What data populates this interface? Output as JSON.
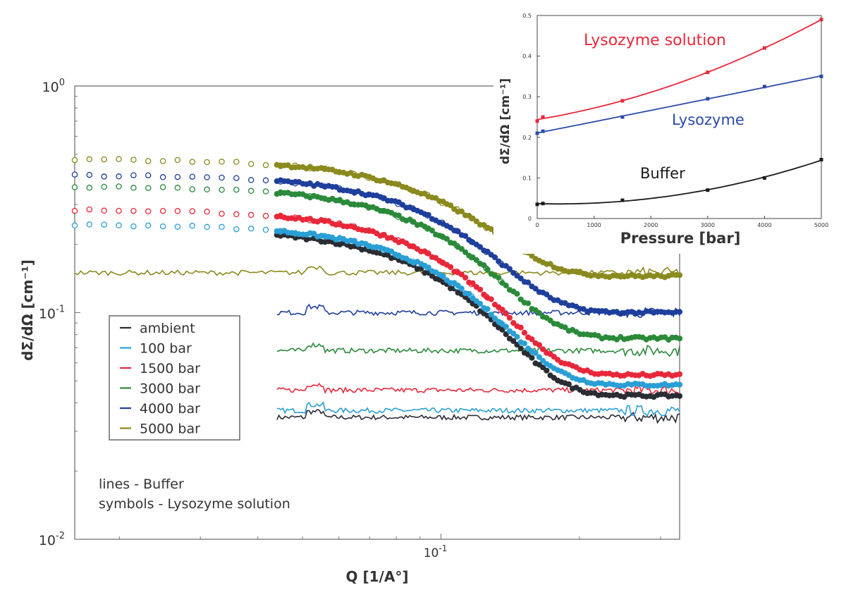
{
  "chart_data": [
    {
      "id": "main",
      "type": "scatter",
      "xlabel": "Q [1/A°]",
      "ylabel": "dΣ/dΩ [cm⁻¹]",
      "xscale": "log",
      "yscale": "log",
      "xlim": [
        0.016,
        0.33
      ],
      "ylim": [
        0.01,
        1.0
      ],
      "xticks": [
        {
          "value": 0.1,
          "label": "10",
          "sup": "-1"
        }
      ],
      "yticks": [
        {
          "value": 1.0,
          "label": "10",
          "sup": "0"
        },
        {
          "value": 0.1,
          "label": "10",
          "sup": "-1"
        },
        {
          "value": 0.01,
          "label": "10",
          "sup": "-2"
        }
      ],
      "legend_position": "lower-left",
      "note_lines": [
        "lines - Buffer",
        "symbols - Lysozyme solution"
      ],
      "series": [
        {
          "name": "ambient",
          "color": "#2a2d33",
          "plateau": 0.235,
          "high_q": 0.043,
          "buffer_level": 0.0345,
          "open_from": null
        },
        {
          "name": "100 bar",
          "color": "#2a9fd6",
          "plateau": 0.245,
          "high_q": 0.048,
          "buffer_level": 0.037,
          "open_from": 0.016
        },
        {
          "name": "1500 bar",
          "color": "#e8283a",
          "plateau": 0.285,
          "high_q": 0.053,
          "buffer_level": 0.0455,
          "open_from": 0.016
        },
        {
          "name": "3000 bar",
          "color": "#2a8a3a",
          "plateau": 0.36,
          "high_q": 0.077,
          "buffer_level": 0.068,
          "open_from": 0.016
        },
        {
          "name": "4000 bar",
          "color": "#1e3f9c",
          "plateau": 0.405,
          "high_q": 0.1,
          "buffer_level": 0.1,
          "open_from": 0.016
        },
        {
          "name": "5000 bar",
          "color": "#8a8a1e",
          "plateau": 0.475,
          "high_q": 0.145,
          "buffer_level": 0.15,
          "open_from": 0.016
        }
      ]
    },
    {
      "id": "inset",
      "type": "line",
      "xlabel": "Pressure [bar]",
      "ylabel": "dΣ/dΩ [cm⁻¹]",
      "xlim": [
        0,
        5000
      ],
      "ylim": [
        0,
        0.5
      ],
      "xticks": [
        0,
        1000,
        2000,
        3000,
        4000,
        5000
      ],
      "yticks": [
        0,
        0.1,
        0.2,
        0.3,
        0.4,
        0.5
      ],
      "series": [
        {
          "name": "Lysozyme solution",
          "color": "#e8283a",
          "x": [
            0,
            100,
            1500,
            3000,
            4000,
            5000
          ],
          "y": [
            0.24,
            0.25,
            0.29,
            0.36,
            0.42,
            0.49
          ]
        },
        {
          "name": "Lysozyme",
          "color": "#2b4aa8",
          "x": [
            0,
            100,
            1500,
            3000,
            4000,
            5000
          ],
          "y": [
            0.21,
            0.215,
            0.25,
            0.295,
            0.325,
            0.35
          ]
        },
        {
          "name": "Buffer",
          "color": "#1a1a1a",
          "x": [
            0,
            100,
            1500,
            3000,
            4000,
            5000
          ],
          "y": [
            0.035,
            0.037,
            0.045,
            0.07,
            0.1,
            0.145
          ]
        }
      ]
    }
  ]
}
